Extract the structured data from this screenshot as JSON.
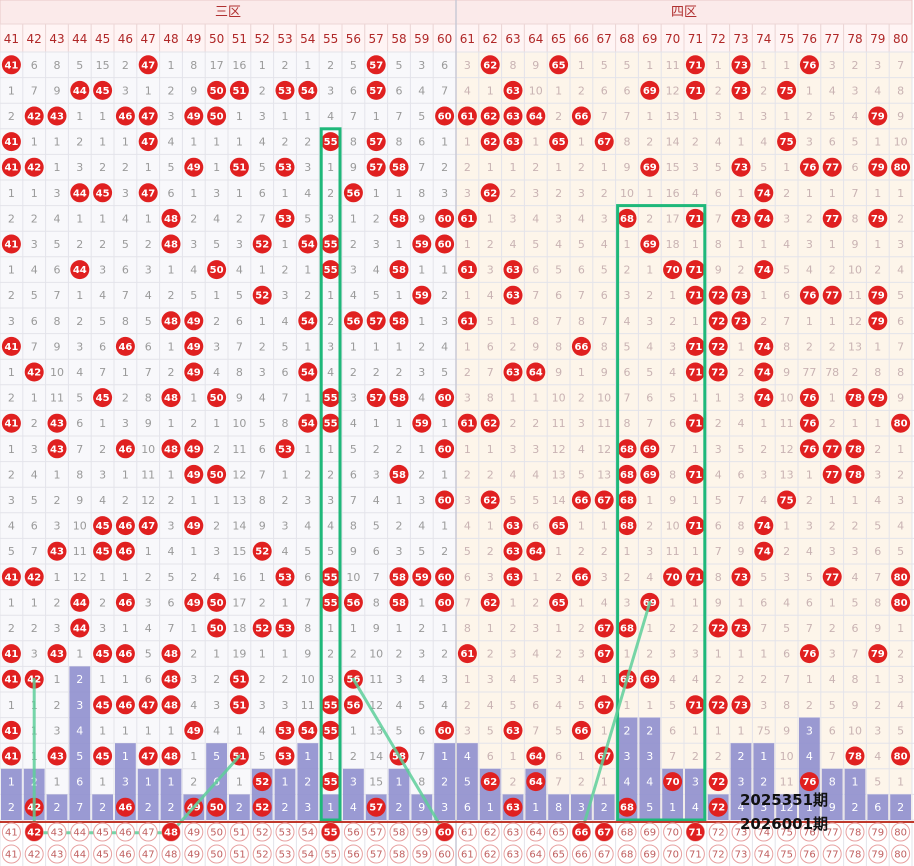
{
  "zones": [
    {
      "label": "三区",
      "start": 41,
      "end": 60,
      "bg": "#f8f8fb"
    },
    {
      "label": "四区",
      "start": 61,
      "end": 80,
      "bg": "#fdf5ea"
    }
  ],
  "numbers": [
    41,
    42,
    43,
    44,
    45,
    46,
    47,
    48,
    49,
    50,
    51,
    52,
    53,
    54,
    55,
    56,
    57,
    58,
    59,
    60,
    61,
    62,
    63,
    64,
    65,
    66,
    67,
    68,
    69,
    70,
    71,
    72,
    73,
    74,
    75,
    76,
    77,
    78,
    79,
    80
  ],
  "colors": {
    "ball": "#e02020",
    "bar": "#8f8fce",
    "highlight": "#1fb87a",
    "trend": "#5ecf9a",
    "header_bg": "#fbeaea",
    "separator": "#c0392b",
    "grid": "#e3e3ea"
  },
  "issues": {
    "previous": "2025351期",
    "next": "2026001期"
  },
  "chart_data": {
    "type": "table",
    "description_of_data": "",
    "x": [
      41,
      42,
      43,
      44,
      45,
      46,
      47,
      48,
      49,
      50,
      51,
      52,
      53,
      54,
      55,
      56,
      57,
      58,
      59,
      60,
      61,
      62,
      63,
      64,
      65,
      66,
      67,
      68,
      69,
      70,
      71,
      72,
      73,
      74,
      75,
      76,
      77,
      78,
      79,
      80
    ],
    "rows": [
      [
        41,
        6,
        8,
        5,
        15,
        2,
        47,
        1,
        8,
        17,
        16,
        1,
        2,
        1,
        2,
        5,
        57,
        5,
        3,
        6,
        3,
        62,
        8,
        9,
        65,
        1,
        5,
        5,
        1,
        11,
        71,
        1,
        73,
        1,
        1,
        76,
        3,
        2,
        3,
        7
      ],
      [
        1,
        7,
        9,
        44,
        45,
        3,
        1,
        2,
        9,
        50,
        51,
        2,
        53,
        54,
        3,
        6,
        57,
        6,
        4,
        7,
        4,
        1,
        63,
        10,
        1,
        2,
        6,
        6,
        69,
        12,
        71,
        2,
        73,
        2,
        75,
        1,
        4,
        3,
        4,
        8
      ],
      [
        2,
        42,
        43,
        1,
        1,
        46,
        47,
        3,
        49,
        50,
        1,
        3,
        1,
        1,
        4,
        7,
        1,
        7,
        5,
        60,
        61,
        62,
        63,
        64,
        2,
        66,
        7,
        7,
        1,
        13,
        1,
        3,
        1,
        3,
        1,
        2,
        5,
        4,
        79,
        9
      ],
      [
        41,
        1,
        1,
        2,
        1,
        1,
        47,
        4,
        1,
        1,
        1,
        4,
        2,
        2,
        55,
        8,
        57,
        8,
        6,
        1,
        1,
        62,
        63,
        1,
        65,
        1,
        67,
        8,
        2,
        14,
        2,
        4,
        1,
        4,
        75,
        3,
        6,
        5,
        1,
        10
      ],
      [
        41,
        42,
        1,
        3,
        2,
        2,
        1,
        5,
        49,
        1,
        51,
        5,
        53,
        3,
        1,
        9,
        57,
        58,
        7,
        2,
        2,
        1,
        1,
        2,
        1,
        2,
        1,
        9,
        69,
        15,
        3,
        5,
        73,
        5,
        1,
        76,
        77,
        6,
        79,
        80
      ],
      [
        1,
        1,
        3,
        44,
        45,
        3,
        47,
        6,
        1,
        3,
        1,
        6,
        1,
        4,
        2,
        56,
        1,
        1,
        8,
        3,
        3,
        62,
        2,
        3,
        2,
        3,
        2,
        10,
        1,
        16,
        4,
        6,
        1,
        74,
        2,
        1,
        1,
        7,
        1,
        1
      ],
      [
        2,
        2,
        4,
        1,
        1,
        4,
        1,
        48,
        2,
        4,
        2,
        7,
        53,
        5,
        3,
        1,
        2,
        58,
        9,
        60,
        61,
        1,
        3,
        4,
        3,
        4,
        3,
        68,
        2,
        17,
        71,
        7,
        73,
        74,
        3,
        2,
        77,
        8,
        79,
        2
      ],
      [
        41,
        3,
        5,
        2,
        2,
        5,
        2,
        48,
        3,
        5,
        3,
        52,
        1,
        54,
        55,
        2,
        3,
        1,
        59,
        60,
        1,
        2,
        4,
        5,
        4,
        5,
        4,
        1,
        69,
        18,
        1,
        8,
        1,
        1,
        4,
        3,
        1,
        9,
        1,
        3
      ],
      [
        1,
        4,
        6,
        44,
        3,
        6,
        3,
        1,
        4,
        50,
        4,
        1,
        2,
        1,
        55,
        3,
        4,
        58,
        1,
        1,
        61,
        3,
        63,
        6,
        5,
        6,
        5,
        2,
        1,
        70,
        71,
        9,
        2,
        74,
        5,
        4,
        2,
        10,
        2,
        4
      ],
      [
        2,
        5,
        7,
        1,
        4,
        7,
        4,
        2,
        5,
        1,
        5,
        52,
        3,
        2,
        1,
        4,
        5,
        1,
        59,
        2,
        1,
        4,
        63,
        7,
        6,
        7,
        6,
        3,
        2,
        1,
        71,
        72,
        73,
        1,
        6,
        76,
        77,
        11,
        79,
        5
      ],
      [
        3,
        6,
        8,
        2,
        5,
        8,
        5,
        48,
        49,
        2,
        6,
        1,
        4,
        54,
        2,
        56,
        57,
        58,
        1,
        3,
        61,
        5,
        1,
        8,
        7,
        8,
        7,
        4,
        3,
        2,
        1,
        72,
        73,
        2,
        7,
        1,
        1,
        12,
        79,
        6
      ],
      [
        41,
        7,
        9,
        3,
        6,
        46,
        6,
        1,
        49,
        3,
        7,
        2,
        5,
        1,
        3,
        1,
        1,
        1,
        2,
        4,
        1,
        6,
        2,
        9,
        8,
        66,
        8,
        5,
        4,
        3,
        71,
        72,
        1,
        74,
        8,
        2,
        2,
        13,
        1,
        7
      ],
      [
        1,
        42,
        10,
        4,
        7,
        1,
        7,
        2,
        49,
        4,
        8,
        3,
        6,
        54,
        4,
        2,
        2,
        2,
        3,
        5,
        2,
        7,
        63,
        64,
        9,
        1,
        9,
        6,
        5,
        4,
        71,
        72,
        2,
        74,
        9,
        77,
        78,
        2,
        8,
        8
      ],
      [
        2,
        1,
        11,
        5,
        45,
        2,
        8,
        48,
        1,
        50,
        9,
        4,
        7,
        1,
        55,
        3,
        57,
        58,
        4,
        60,
        3,
        8,
        1,
        1,
        10,
        2,
        10,
        7,
        6,
        5,
        1,
        1,
        3,
        74,
        10,
        76,
        1,
        78,
        79,
        9
      ],
      [
        41,
        2,
        43,
        6,
        1,
        3,
        9,
        1,
        2,
        1,
        10,
        5,
        8,
        54,
        55,
        4,
        1,
        1,
        59,
        1,
        61,
        62,
        2,
        2,
        11,
        3,
        11,
        8,
        7,
        6,
        71,
        2,
        4,
        1,
        11,
        76,
        2,
        1,
        1,
        80
      ],
      [
        1,
        3,
        43,
        7,
        2,
        46,
        10,
        48,
        49,
        2,
        11,
        6,
        53,
        1,
        1,
        5,
        2,
        2,
        1,
        60,
        1,
        1,
        3,
        3,
        12,
        4,
        12,
        68,
        69,
        7,
        1,
        3,
        5,
        2,
        12,
        76,
        77,
        78,
        2,
        1
      ],
      [
        2,
        4,
        1,
        8,
        3,
        1,
        11,
        1,
        49,
        50,
        12,
        7,
        1,
        2,
        2,
        6,
        3,
        58,
        2,
        1,
        2,
        2,
        4,
        4,
        13,
        5,
        13,
        68,
        69,
        8,
        71,
        4,
        6,
        3,
        13,
        1,
        77,
        78,
        3,
        2
      ],
      [
        3,
        5,
        2,
        9,
        4,
        2,
        12,
        2,
        1,
        1,
        13,
        8,
        2,
        3,
        3,
        7,
        4,
        1,
        3,
        60,
        3,
        62,
        5,
        5,
        14,
        66,
        67,
        68,
        1,
        9,
        1,
        5,
        7,
        4,
        75,
        2,
        1,
        1,
        4,
        3
      ],
      [
        4,
        6,
        3,
        10,
        45,
        46,
        47,
        3,
        49,
        2,
        14,
        9,
        3,
        4,
        4,
        8,
        5,
        2,
        4,
        1,
        4,
        1,
        63,
        6,
        65,
        1,
        1,
        68,
        2,
        10,
        71,
        6,
        8,
        74,
        1,
        3,
        2,
        2,
        5,
        4
      ],
      [
        5,
        7,
        43,
        11,
        45,
        46,
        1,
        4,
        1,
        3,
        15,
        52,
        4,
        5,
        5,
        9,
        6,
        3,
        5,
        2,
        5,
        2,
        63,
        64,
        1,
        2,
        2,
        1,
        3,
        11,
        1,
        7,
        9,
        74,
        2,
        4,
        3,
        3,
        6,
        5
      ],
      [
        41,
        42,
        1,
        12,
        1,
        1,
        2,
        5,
        2,
        4,
        16,
        1,
        53,
        6,
        55,
        10,
        7,
        58,
        59,
        60,
        6,
        3,
        63,
        1,
        2,
        66,
        3,
        2,
        4,
        70,
        71,
        8,
        73,
        5,
        3,
        5,
        77,
        4,
        7,
        80
      ],
      [
        1,
        1,
        2,
        44,
        2,
        46,
        3,
        6,
        49,
        50,
        17,
        2,
        1,
        7,
        55,
        56,
        8,
        58,
        1,
        60,
        7,
        62,
        1,
        2,
        65,
        1,
        4,
        3,
        69,
        1,
        1,
        9,
        1,
        6,
        4,
        6,
        1,
        5,
        8,
        80
      ],
      [
        2,
        2,
        3,
        44,
        3,
        1,
        4,
        7,
        1,
        50,
        18,
        52,
        53,
        8,
        1,
        1,
        9,
        1,
        2,
        1,
        8,
        1,
        2,
        3,
        1,
        2,
        67,
        68,
        1,
        2,
        2,
        72,
        73,
        7,
        5,
        7,
        2,
        6,
        9,
        1
      ],
      [
        41,
        3,
        43,
        1,
        45,
        46,
        5,
        48,
        2,
        1,
        19,
        1,
        1,
        9,
        2,
        2,
        10,
        2,
        3,
        2,
        61,
        2,
        3,
        4,
        2,
        3,
        67,
        1,
        2,
        3,
        3,
        1,
        1,
        1,
        6,
        76,
        3,
        7,
        79,
        2
      ],
      [
        41,
        42,
        1,
        2,
        1,
        1,
        6,
        48,
        3,
        2,
        51,
        2,
        2,
        10,
        3,
        56,
        11,
        3,
        4,
        3,
        1,
        3,
        4,
        5,
        3,
        4,
        1,
        68,
        69,
        4,
        4,
        2,
        2,
        2,
        7,
        1,
        4,
        8,
        1,
        3
      ],
      [
        1,
        1,
        2,
        3,
        45,
        46,
        47,
        48,
        4,
        3,
        51,
        3,
        3,
        11,
        55,
        56,
        12,
        4,
        5,
        4,
        2,
        4,
        5,
        6,
        4,
        5,
        67,
        1,
        1,
        5,
        71,
        72,
        73,
        3,
        8,
        2,
        5,
        9,
        2,
        4
      ],
      [
        41,
        1,
        3,
        4,
        1,
        1,
        1,
        1,
        49,
        4,
        1,
        4,
        53,
        54,
        55,
        1,
        13,
        5,
        6,
        60,
        3,
        5,
        63,
        7,
        5,
        66,
        1,
        2,
        2,
        6,
        1,
        1,
        1,
        75,
        9,
        3,
        6,
        10,
        3,
        5
      ],
      [
        41,
        1,
        43,
        5,
        45,
        1,
        47,
        48,
        1,
        5,
        51,
        5,
        53,
        1,
        1,
        2,
        14,
        58,
        7,
        1,
        4,
        6,
        1,
        64,
        6,
        1,
        67,
        3,
        3,
        7,
        2,
        2,
        2,
        1,
        10,
        4,
        7,
        78,
        4,
        80
      ],
      [
        1,
        2,
        1,
        6,
        1,
        3,
        1,
        1,
        2,
        6,
        1,
        52,
        1,
        2,
        55,
        3,
        15,
        1,
        8,
        2,
        5,
        62,
        2,
        64,
        7,
        2,
        1,
        4,
        4,
        70,
        3,
        72,
        3,
        2,
        11,
        76,
        8,
        1,
        5,
        1
      ],
      [
        2,
        42,
        2,
        7,
        2,
        46,
        2,
        2,
        49,
        50,
        2,
        52,
        2,
        3,
        1,
        4,
        57,
        2,
        9,
        3,
        6,
        1,
        63,
        1,
        8,
        3,
        2,
        68,
        5,
        1,
        4,
        72,
        4,
        3,
        12,
        1,
        9,
        2,
        6,
        2
      ]
    ],
    "bars_note": "",
    "bars": [
      2,
      2,
      1,
      6,
      1,
      3,
      2,
      2,
      1,
      3,
      1,
      2,
      2,
      3,
      1,
      2,
      1,
      2,
      1,
      3,
      3,
      2,
      1,
      2,
      1,
      1,
      1,
      4,
      4,
      2,
      2,
      1,
      3,
      3,
      1,
      4,
      2,
      2,
      1,
      1
    ]
  }
}
